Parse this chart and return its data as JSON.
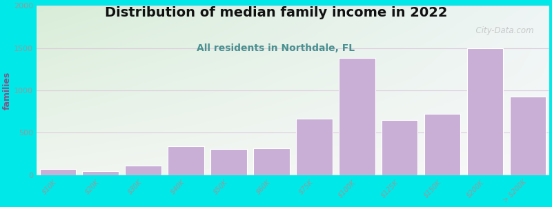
{
  "title": "Distribution of median family income in 2022",
  "subtitle": "All residents in Northdale, FL",
  "ylabel": "families",
  "categories": [
    "$10K",
    "$20K",
    "$30K",
    "$40K",
    "$50K",
    "$60K",
    "$75K",
    "$100K",
    "$125K",
    "$150K",
    "$200K",
    "> $200K"
  ],
  "values": [
    75,
    50,
    110,
    340,
    305,
    315,
    665,
    1385,
    650,
    720,
    1500,
    930
  ],
  "bar_color": "#c9aed6",
  "bar_edge_color": "#ffffff",
  "background_color": "#00e8e8",
  "gradient_topleft": "#d8edd8",
  "gradient_bottomright": "#eef5f5",
  "title_fontsize": 14,
  "subtitle_fontsize": 10,
  "subtitle_color": "#4a9090",
  "ylabel_color": "#7a5a8a",
  "tick_color": "#999999",
  "gridline_color": "#ddccdd",
  "ylim": [
    0,
    2000
  ],
  "yticks": [
    0,
    500,
    1000,
    1500,
    2000
  ],
  "watermark": "  City-Data.com",
  "watermark_color": "#bbbbbb"
}
